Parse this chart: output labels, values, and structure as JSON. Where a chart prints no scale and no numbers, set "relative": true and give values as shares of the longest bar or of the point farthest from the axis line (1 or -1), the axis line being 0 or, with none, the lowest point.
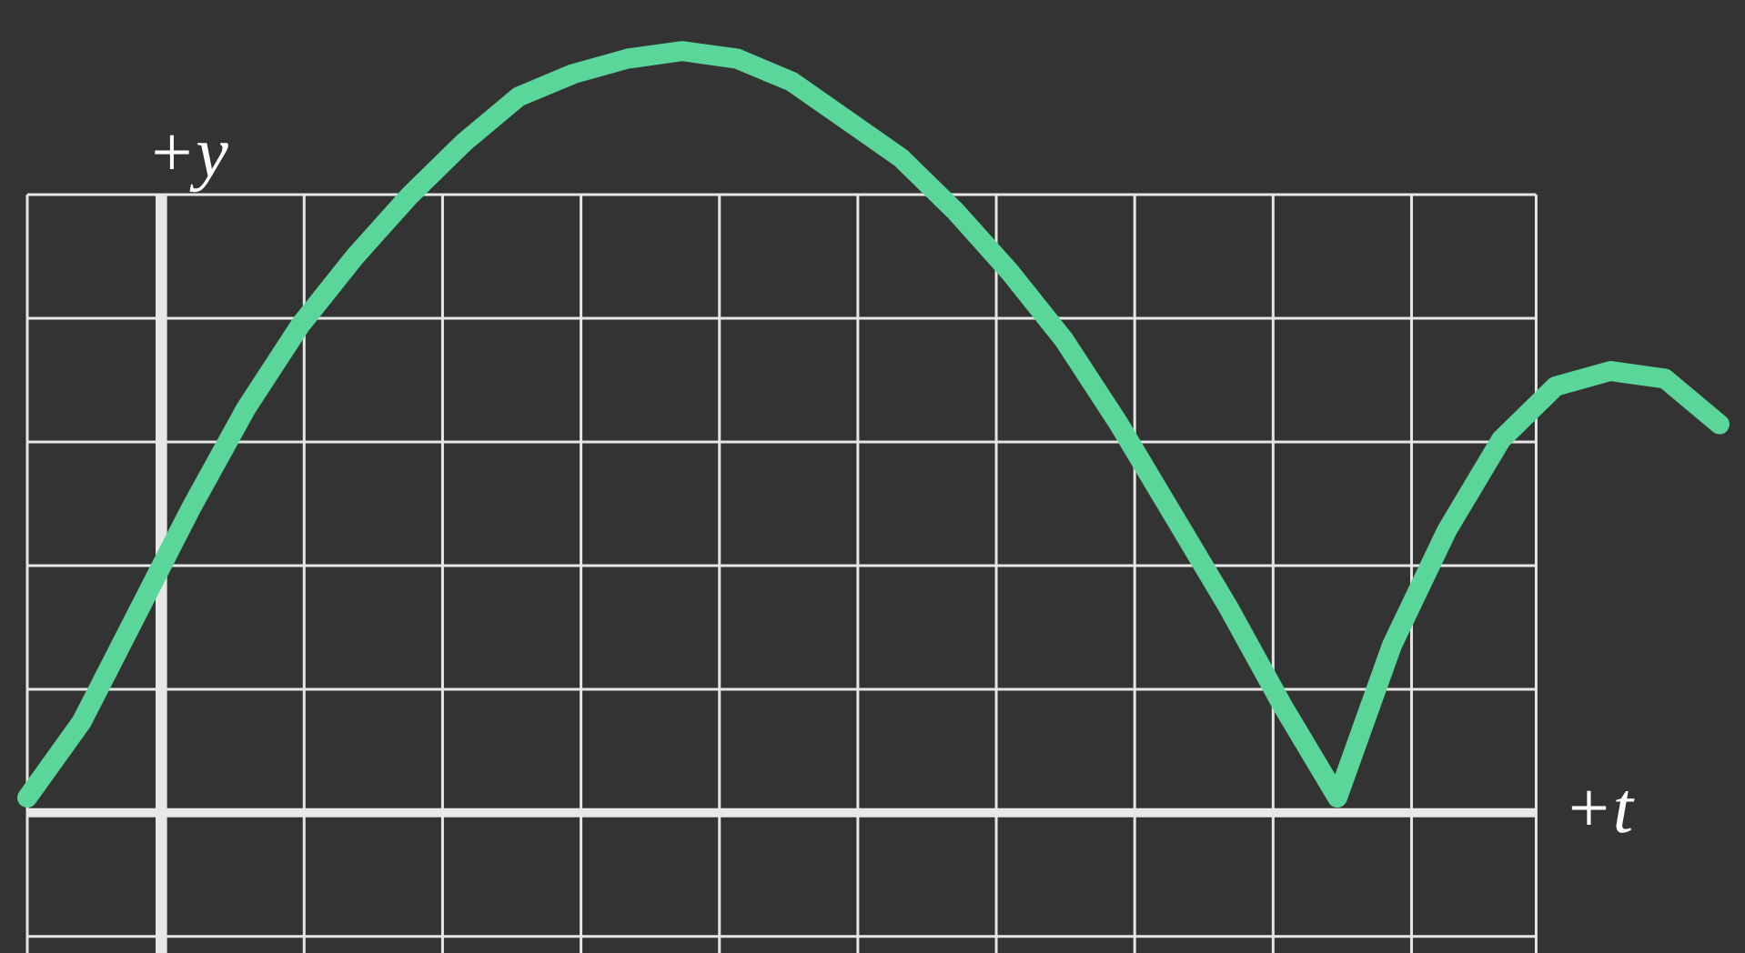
{
  "chart_data": {
    "type": "line",
    "relative": true,
    "xlabel": "+t",
    "ylabel": "+y",
    "grid": true,
    "marker": "none",
    "legend": false,
    "categories": [
      null,
      null,
      null,
      null,
      null,
      null,
      null,
      null,
      null,
      null,
      null,
      null,
      null,
      null,
      null,
      null,
      null,
      null,
      null,
      null,
      null,
      null,
      null,
      null,
      null,
      null,
      null,
      null,
      null,
      null,
      null,
      null
    ],
    "series": [
      {
        "color": "#5ad69a",
        "values": [
          0.02,
          0.12,
          0.26,
          0.4,
          0.53,
          0.64,
          0.73,
          0.81,
          0.88,
          0.94,
          0.97,
          0.99,
          1.0,
          0.99,
          0.96,
          0.91,
          0.86,
          0.79,
          0.71,
          0.62,
          0.51,
          0.39,
          0.27,
          0.14,
          0.02,
          0.22,
          0.37,
          0.49,
          0.56,
          0.58,
          0.57,
          0.51
        ]
      }
    ]
  }
}
